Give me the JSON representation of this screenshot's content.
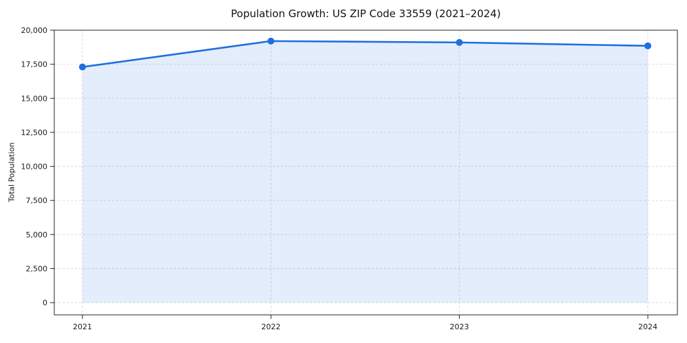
{
  "figure": {
    "background": "#ffffff"
  },
  "chart_data": {
    "type": "line",
    "title": "Population Growth: US ZIP Code 33559 (2021–2024)",
    "xlabel": "",
    "ylabel": "Total Population",
    "x": [
      2021,
      2022,
      2023,
      2024
    ],
    "xtick_labels": [
      "2021",
      "2022",
      "2023",
      "2024"
    ],
    "series": [
      {
        "name": "Total Population",
        "values": [
          17300,
          19200,
          19100,
          18850
        ],
        "marker": "circle",
        "area_fill": true
      }
    ],
    "ylim": [
      -900,
      20000
    ],
    "yticks": [
      0,
      2500,
      5000,
      7500,
      10000,
      12500,
      15000,
      17500,
      20000
    ],
    "ytick_labels": [
      "0",
      "2,500",
      "5,000",
      "7,500",
      "10,000",
      "12,500",
      "15,000",
      "17,500",
      "20,000"
    ],
    "grid": true,
    "grid_style": "dashed",
    "legend": "none"
  },
  "colors": {
    "line": "#1f6fe0",
    "marker": "#1f6fe0",
    "area_fill": "rgba(31,111,224,0.12)",
    "grid": "#d8d8d8",
    "spine": "#262626",
    "tick": "#262626",
    "text": "#1a1a1a",
    "background": "#ffffff"
  }
}
